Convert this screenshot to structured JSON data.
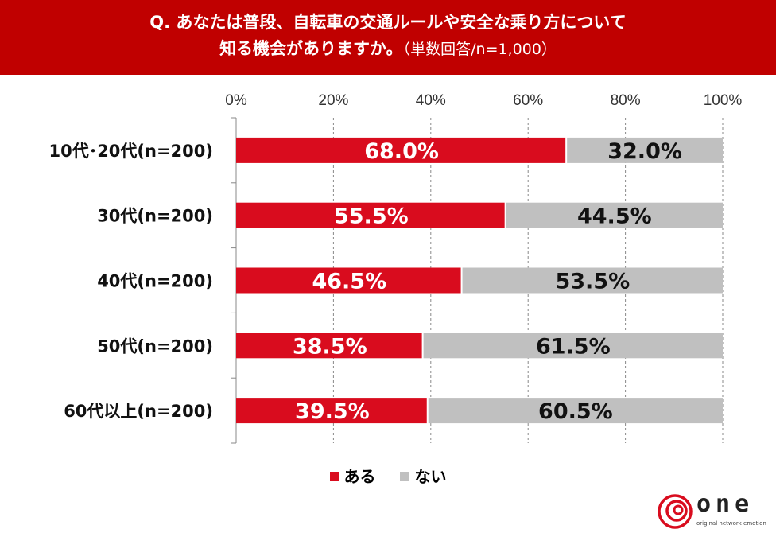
{
  "header": {
    "line1": "Q. あなたは普段、自転車の交通ルールや安全な乗り方について",
    "line2_bold": "知る機会がありますか。",
    "line2_note": "（単数回答/n=1,000）"
  },
  "chart_data": {
    "type": "bar",
    "orientation": "horizontal",
    "stacked": "percent",
    "categories": [
      "10代･20代(n=200)",
      "30代(n=200)",
      "40代(n=200)",
      "50代(n=200)",
      "60代以上(n=200)"
    ],
    "series": [
      {
        "name": "ある",
        "color": "#d90c1e",
        "values": [
          68.0,
          55.5,
          46.5,
          38.5,
          39.5
        ],
        "labels": [
          "68.0%",
          "55.5%",
          "46.5%",
          "38.5%",
          "39.5%"
        ]
      },
      {
        "name": "ない",
        "color": "#c0c0c0",
        "values": [
          32.0,
          44.5,
          53.5,
          61.5,
          60.5
        ],
        "labels": [
          "32.0%",
          "44.5%",
          "53.5%",
          "61.5%",
          "60.5%"
        ]
      }
    ],
    "xlim": [
      0,
      100
    ],
    "xticks": [
      "0%",
      "20%",
      "40%",
      "60%",
      "80%",
      "100%"
    ],
    "grid": "vertical-dashed",
    "legend": "bottom"
  },
  "logo": {
    "text": "one",
    "tagline": "original network emotion"
  }
}
